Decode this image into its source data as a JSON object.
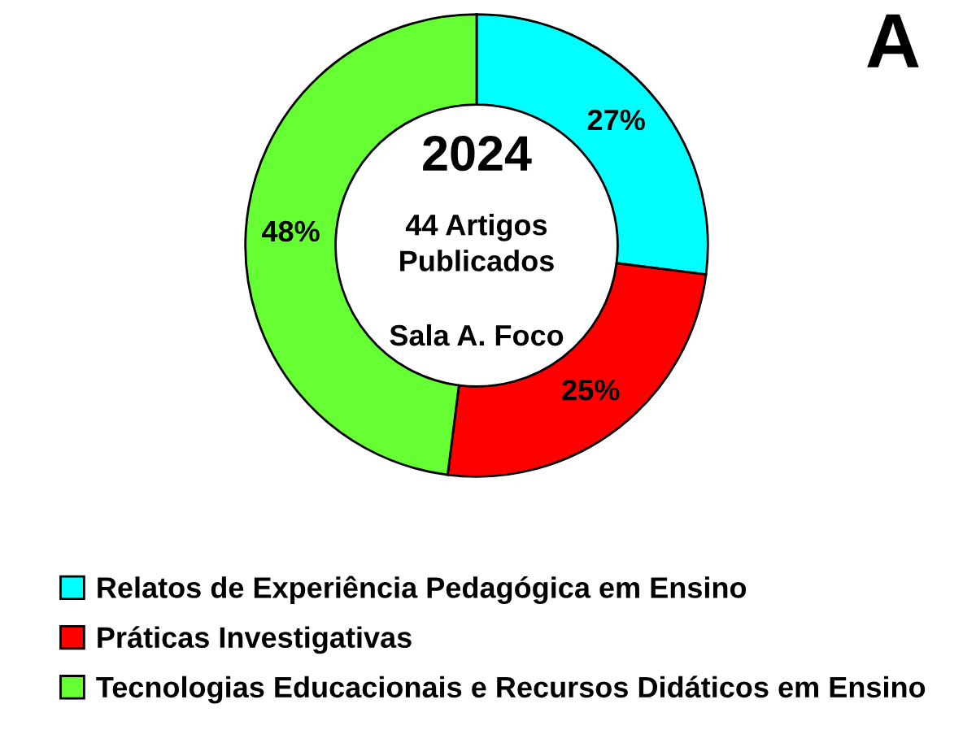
{
  "chart_data": {
    "type": "donut",
    "categories": [
      "Relatos de Experiência Pedagógica em Ensino",
      "Práticas Investigativas",
      "Tecnologias Educacionais e Recursos Didáticos em Ensino"
    ],
    "values": [
      27,
      25,
      48
    ],
    "colors": [
      "#00ffff",
      "#ff0000",
      "#66ff33"
    ],
    "value_labels": [
      "27%",
      "25%",
      "48%"
    ],
    "legend": "bottom",
    "title": "2024",
    "subtitle": "44 Artigos\nPublicados",
    "annotations": [
      "Sala A. Foco",
      "A"
    ]
  }
}
